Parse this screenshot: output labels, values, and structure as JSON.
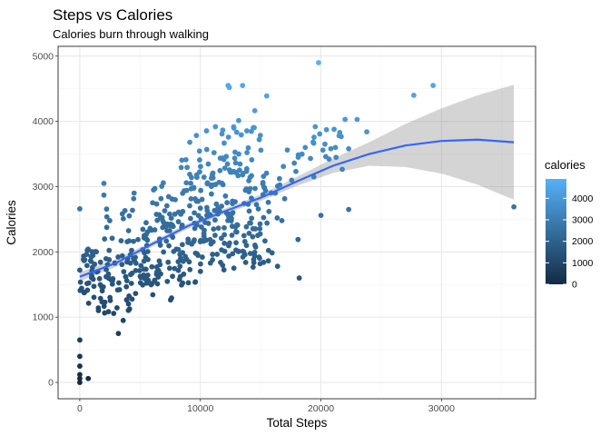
{
  "chart_data": {
    "type": "scatter",
    "title": "Steps vs Calories",
    "subtitle": "Calories burn through walking",
    "xlabel": "Total Steps",
    "ylabel": "Calories",
    "xlim": [
      -1800,
      37800
    ],
    "ylim": [
      -250,
      5150
    ],
    "x_ticks": [
      0,
      10000,
      20000,
      30000
    ],
    "x_tick_labels": [
      "0",
      "10000",
      "20000",
      "30000"
    ],
    "y_ticks": [
      0,
      1000,
      2000,
      3000,
      4000,
      5000
    ],
    "y_tick_labels": [
      "0",
      "1000",
      "2000",
      "3000",
      "4000",
      "5000"
    ],
    "grid": true,
    "legend": {
      "title": "calories",
      "placement": "right",
      "breaks": [
        0,
        1000,
        2000,
        3000,
        4000
      ],
      "labels": [
        "0",
        "1000",
        "2000",
        "3000",
        "4000"
      ],
      "range": [
        0,
        4900
      ]
    },
    "color_scale": {
      "low": "#132B43",
      "high": "#56B1F7"
    },
    "smooth": {
      "color": "#3366FF",
      "band_color": "#999999",
      "x": [
        0,
        3000,
        6000,
        9000,
        12000,
        15000,
        18000,
        21000,
        24000,
        27000,
        30000,
        33000,
        36000
      ],
      "y": [
        1620,
        1830,
        2120,
        2400,
        2620,
        2830,
        3080,
        3320,
        3500,
        3630,
        3700,
        3720,
        3680
      ],
      "lower": [
        1550,
        1770,
        2080,
        2360,
        2580,
        2780,
        3010,
        3210,
        3320,
        3300,
        3200,
        3030,
        2800
      ],
      "upper": [
        1690,
        1890,
        2160,
        2440,
        2660,
        2880,
        3150,
        3430,
        3680,
        3960,
        4200,
        4400,
        4560
      ]
    },
    "points_highlight": [
      {
        "x": 0,
        "y": 2660
      },
      {
        "x": 0,
        "y": 650
      },
      {
        "x": 0,
        "y": 400
      },
      {
        "x": 0,
        "y": 250
      },
      {
        "x": 0,
        "y": 120
      },
      {
        "x": 0,
        "y": 60
      },
      {
        "x": 0,
        "y": 0
      },
      {
        "x": 700,
        "y": 60
      },
      {
        "x": 2000,
        "y": 2870
      },
      {
        "x": 2000,
        "y": 3050
      },
      {
        "x": 3200,
        "y": 750
      },
      {
        "x": 3600,
        "y": 950
      },
      {
        "x": 12300,
        "y": 4550
      },
      {
        "x": 12400,
        "y": 4520
      },
      {
        "x": 13500,
        "y": 4550
      },
      {
        "x": 15500,
        "y": 4390
      },
      {
        "x": 19800,
        "y": 4900
      },
      {
        "x": 27700,
        "y": 4400
      },
      {
        "x": 29300,
        "y": 4550
      },
      {
        "x": 36000,
        "y": 2690
      },
      {
        "x": 22000,
        "y": 4030
      },
      {
        "x": 23000,
        "y": 4030
      },
      {
        "x": 23800,
        "y": 3840
      },
      {
        "x": 20000,
        "y": 2560
      },
      {
        "x": 22300,
        "y": 2650
      },
      {
        "x": 18200,
        "y": 1600
      },
      {
        "x": 16400,
        "y": 1780
      },
      {
        "x": 18100,
        "y": 2190
      },
      {
        "x": 20400,
        "y": 3460
      },
      {
        "x": 21200,
        "y": 3600
      },
      {
        "x": 22300,
        "y": 3580
      },
      {
        "x": 18700,
        "y": 3600
      }
    ],
    "point_clusters": [
      {
        "n": 80,
        "x": [
          300,
          6000
        ],
        "y0": 1350,
        "y1": 2200
      },
      {
        "n": 90,
        "x": [
          5000,
          13000
        ],
        "y0": 1700,
        "y1": 2600
      },
      {
        "n": 70,
        "x": [
          8000,
          16000
        ],
        "y0": 1600,
        "y1": 2400
      },
      {
        "n": 80,
        "x": [
          6000,
          14000
        ],
        "y0": 2400,
        "y1": 3400
      },
      {
        "n": 50,
        "x": [
          8000,
          15000
        ],
        "y0": 3000,
        "y1": 4000
      },
      {
        "n": 40,
        "x": [
          1500,
          8000
        ],
        "y0": 1100,
        "y1": 1700
      },
      {
        "n": 40,
        "x": [
          14000,
          22000
        ],
        "y0": 2800,
        "y1": 3900
      },
      {
        "n": 30,
        "x": [
          2000,
          8000
        ],
        "y0": 2200,
        "y1": 3000
      },
      {
        "n": 25,
        "x": [
          12000,
          17000
        ],
        "y0": 2200,
        "y1": 3100
      },
      {
        "n": 20,
        "x": [
          0,
          1500
        ],
        "y0": 1400,
        "y1": 2100
      }
    ]
  }
}
